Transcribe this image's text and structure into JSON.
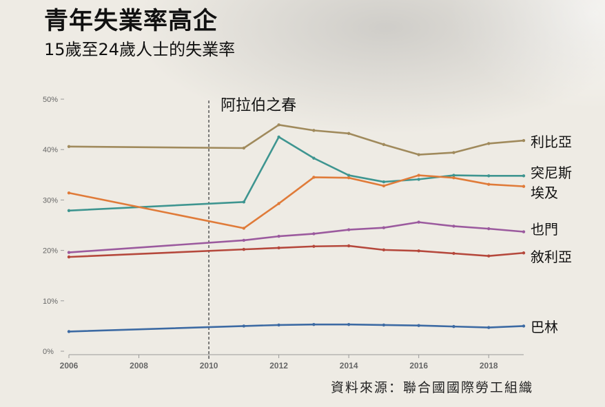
{
  "title": "青年失業率高企",
  "subtitle": "15歲至24歲人士的失業率",
  "source": "資料來源：聯合國國際勞工組織",
  "chart_data": {
    "type": "line",
    "title": "青年失業率高企",
    "subtitle": "15歲至24歲人士的失業率",
    "xlabel": "",
    "ylabel": "",
    "xlim": [
      2006,
      2019
    ],
    "ylim": [
      0,
      50
    ],
    "y_ticks": [
      0,
      10,
      20,
      30,
      40,
      50
    ],
    "y_tick_labels": [
      "0%",
      "10%",
      "20%",
      "30%",
      "40%",
      "50%"
    ],
    "x_ticks": [
      2006,
      2008,
      2010,
      2012,
      2014,
      2016,
      2018
    ],
    "x_tick_labels": [
      "2006",
      "2008",
      "2010",
      "2012",
      "2014",
      "2016",
      "2018"
    ],
    "grid": false,
    "annotations": [
      {
        "label": "阿拉伯之春",
        "x": 2010
      }
    ],
    "series": [
      {
        "name": "利比亞",
        "color": "#a08a5c",
        "x": [
          2006,
          2011,
          2012,
          2013,
          2014,
          2015,
          2016,
          2017,
          2018,
          2019
        ],
        "values": [
          40.6,
          40.3,
          44.9,
          43.8,
          43.2,
          41.0,
          39.0,
          39.4,
          41.2,
          41.8
        ]
      },
      {
        "name": "突尼斯",
        "color": "#3e9590",
        "x": [
          2006,
          2011,
          2012,
          2013,
          2014,
          2015,
          2016,
          2017,
          2018,
          2019
        ],
        "values": [
          27.9,
          29.6,
          42.5,
          38.3,
          34.9,
          33.6,
          34.1,
          34.9,
          34.8,
          34.8
        ]
      },
      {
        "name": "埃及",
        "color": "#e07b39",
        "x": [
          2006,
          2011,
          2012,
          2013,
          2014,
          2015,
          2016,
          2017,
          2018,
          2019
        ],
        "values": [
          31.4,
          24.4,
          29.3,
          34.5,
          34.4,
          32.8,
          34.9,
          34.4,
          33.1,
          32.7
        ]
      },
      {
        "name": "也門",
        "color": "#9b5a9e",
        "x": [
          2006,
          2011,
          2012,
          2013,
          2014,
          2015,
          2016,
          2017,
          2018,
          2019
        ],
        "values": [
          19.6,
          22.0,
          22.8,
          23.3,
          24.1,
          24.5,
          25.6,
          24.8,
          24.3,
          23.7
        ]
      },
      {
        "name": "敘利亞",
        "color": "#b5483c",
        "x": [
          2006,
          2011,
          2012,
          2013,
          2014,
          2015,
          2016,
          2017,
          2018,
          2019
        ],
        "values": [
          18.7,
          20.2,
          20.5,
          20.8,
          20.9,
          20.1,
          19.9,
          19.4,
          18.9,
          19.5
        ]
      },
      {
        "name": "巴林",
        "color": "#3c6aa3",
        "x": [
          2006,
          2011,
          2012,
          2013,
          2014,
          2015,
          2016,
          2017,
          2018,
          2019
        ],
        "values": [
          3.9,
          5.0,
          5.2,
          5.3,
          5.3,
          5.2,
          5.1,
          4.9,
          4.7,
          5.0
        ]
      }
    ]
  }
}
